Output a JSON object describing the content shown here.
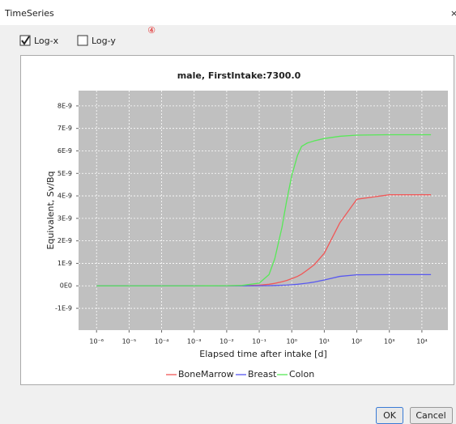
{
  "window": {
    "title": "TimeSeries",
    "close": "×"
  },
  "controls": {
    "log_x": {
      "label": "Log-x",
      "checked": true
    },
    "log_y": {
      "label": "Log-y",
      "checked": false
    }
  },
  "annotation": "④",
  "chart_data": {
    "type": "line",
    "title": "male, FirstIntake:7300.0",
    "x_label": "Elapsed time after intake [d]",
    "y_label": "Equivalent, Sv/Bq",
    "log_x": true,
    "grid": true,
    "x": [
      1e-06,
      1e-05,
      0.0001,
      0.001,
      0.01,
      0.03,
      0.1,
      0.2,
      0.3,
      0.5,
      0.7,
      1,
      1.5,
      2,
      3,
      5,
      10,
      30,
      100,
      1000,
      10000,
      19000
    ],
    "series": [
      {
        "name": "BoneMarrow",
        "color": "#f05858",
        "values": [
          0,
          0,
          0,
          0,
          2e-12,
          8e-12,
          3e-11,
          7e-11,
          1.1e-10,
          1.8e-10,
          2.4e-10,
          3.2e-10,
          4.2e-10,
          5.2e-10,
          7e-10,
          9.5e-10,
          1.45e-09,
          2.8e-09,
          3.85e-09,
          4.05e-09,
          4.05e-09,
          4.05e-09
        ]
      },
      {
        "name": "Breast",
        "color": "#5858f0",
        "values": [
          0,
          0,
          0,
          0,
          0,
          1e-12,
          4e-12,
          1e-11,
          1.6e-11,
          2.6e-11,
          3.5e-11,
          5e-11,
          7e-11,
          9e-11,
          1.2e-10,
          1.7e-10,
          2.6e-10,
          4.2e-10,
          4.9e-10,
          5e-10,
          5e-10,
          5e-10
        ]
      },
      {
        "name": "Colon",
        "color": "#58e858",
        "values": [
          0,
          0,
          0,
          0,
          5e-12,
          2e-11,
          1.2e-10,
          5e-10,
          1.2e-09,
          2.6e-09,
          3.8e-09,
          4.9e-09,
          5.8e-09,
          6.2e-09,
          6.35e-09,
          6.45e-09,
          6.55e-09,
          6.65e-09,
          6.7e-09,
          6.72e-09,
          6.72e-09,
          6.72e-09
        ]
      }
    ],
    "xlim": [
      2.8e-07,
      63000.0
    ],
    "xticks": [
      {
        "value": 1e-06,
        "label": "10⁻⁶"
      },
      {
        "value": 1e-05,
        "label": "10⁻⁵"
      },
      {
        "value": 0.0001,
        "label": "10⁻⁴"
      },
      {
        "value": 0.001,
        "label": "10⁻³"
      },
      {
        "value": 0.01,
        "label": "10⁻²"
      },
      {
        "value": 0.1,
        "label": "10⁻¹"
      },
      {
        "value": 1,
        "label": "10⁰"
      },
      {
        "value": 10,
        "label": "10¹"
      },
      {
        "value": 100,
        "label": "10²"
      },
      {
        "value": 1000,
        "label": "10³"
      },
      {
        "value": 10000,
        "label": "10⁴"
      }
    ],
    "ylim": [
      -1.97e-09,
      8.68e-09
    ],
    "yticks": [
      {
        "value": -1e-09,
        "label": "-1E-9"
      },
      {
        "value": 0,
        "label": "0E0"
      },
      {
        "value": 1e-09,
        "label": "1E-9"
      },
      {
        "value": 2e-09,
        "label": "2E-9"
      },
      {
        "value": 3e-09,
        "label": "3E-9"
      },
      {
        "value": 4e-09,
        "label": "4E-9"
      },
      {
        "value": 5e-09,
        "label": "5E-9"
      },
      {
        "value": 6e-09,
        "label": "6E-9"
      },
      {
        "value": 7e-09,
        "label": "7E-9"
      },
      {
        "value": 8e-09,
        "label": "8E-9"
      }
    ]
  },
  "buttons": {
    "ok": "OK",
    "cancel": "Cancel"
  }
}
